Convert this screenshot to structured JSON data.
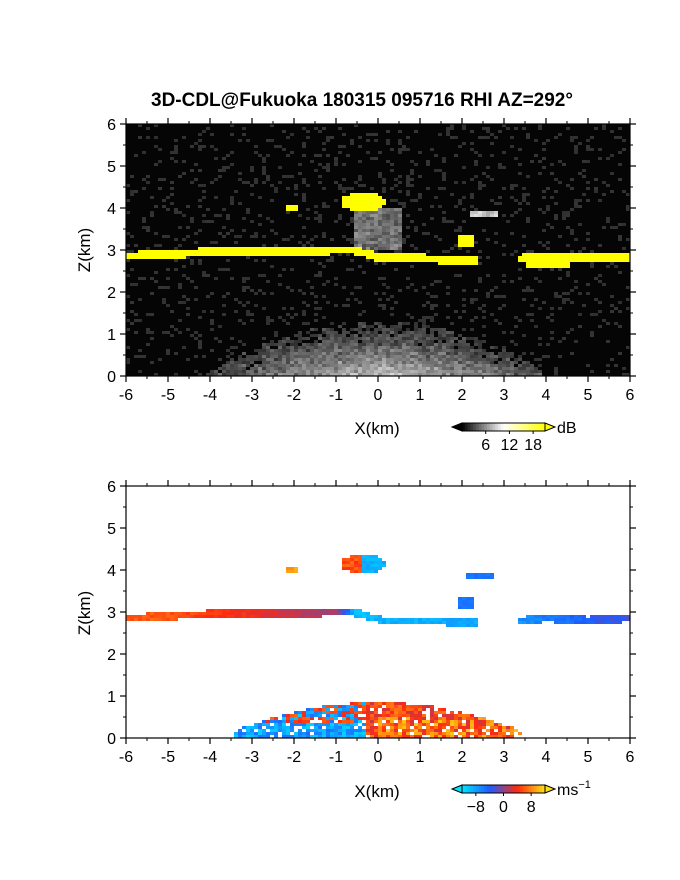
{
  "title": "3D-CDL@Fukuoka 180315 095716 RHI AZ=292°",
  "chart_data": [
    {
      "type": "heatmap",
      "quantity": "backscatter intensity",
      "xlabel": "X(km)",
      "ylabel": "Z(km)",
      "xlim": [
        -6,
        6
      ],
      "ylim": [
        0,
        6
      ],
      "xticks": [
        "-6",
        "-5",
        "-4",
        "-3",
        "-2",
        "-1",
        "0",
        "1",
        "2",
        "3",
        "4",
        "5",
        "6"
      ],
      "yticks": [
        "0",
        "1",
        "2",
        "3",
        "4",
        "5",
        "6"
      ],
      "colorbar": {
        "unit": "dB",
        "ticks": [
          "6",
          "12",
          "18"
        ],
        "range": [
          0,
          21
        ],
        "palette": [
          "#000000",
          "#ffffff",
          "#ffff00"
        ]
      },
      "features": {
        "cloud_layer": [
          [
            -6,
            2.85
          ],
          [
            -5,
            2.9
          ],
          [
            -4,
            2.95
          ],
          [
            -3,
            2.95
          ],
          [
            -2,
            2.95
          ],
          [
            -1,
            3.0
          ],
          [
            -0.6,
            3.0
          ],
          [
            0.1,
            2.8
          ],
          [
            1,
            2.8
          ],
          [
            2,
            2.75
          ],
          [
            3,
            2.75
          ],
          [
            4,
            2.85
          ],
          [
            5,
            2.8
          ],
          [
            6,
            2.85
          ]
        ],
        "upper_cloud_x": [
          -0.9,
          0.2
        ],
        "upper_cloud_z": [
          3.9,
          4.4
        ],
        "boundary_layer_top_km": 1.3
      }
    },
    {
      "type": "heatmap",
      "quantity": "radial velocity",
      "xlabel": "X(km)",
      "ylabel": "Z(km)",
      "xlim": [
        -6,
        6
      ],
      "ylim": [
        0,
        6
      ],
      "xticks": [
        "-6",
        "-5",
        "-4",
        "-3",
        "-2",
        "-1",
        "0",
        "1",
        "2",
        "3",
        "4",
        "5",
        "6"
      ],
      "yticks": [
        "0",
        "1",
        "2",
        "3",
        "4",
        "5",
        "6"
      ],
      "colorbar": {
        "unit": "ms",
        "unit_exp": "−1",
        "ticks": [
          "−8",
          "0",
          "8"
        ],
        "range": [
          -12,
          12
        ],
        "palette": [
          "#00e5ff",
          "#1e5bff",
          "#ff2a10",
          "#ffe014"
        ]
      },
      "features": {
        "cloud_layer_velocity": [
          [
            -6,
            6
          ],
          [
            -5,
            6
          ],
          [
            -4,
            4.5
          ],
          [
            -3,
            3.5
          ],
          [
            -2,
            2
          ],
          [
            -1,
            0.8
          ],
          [
            -0.5,
            -10
          ],
          [
            0.1,
            -9
          ],
          [
            1,
            -9
          ],
          [
            2,
            -8.5
          ],
          [
            3,
            -8
          ],
          [
            4,
            -6
          ],
          [
            5,
            -4
          ],
          [
            6,
            -3
          ]
        ],
        "boundary_layer_negative_x_ms": -8,
        "boundary_layer_positive_x_ms": 5
      }
    }
  ]
}
